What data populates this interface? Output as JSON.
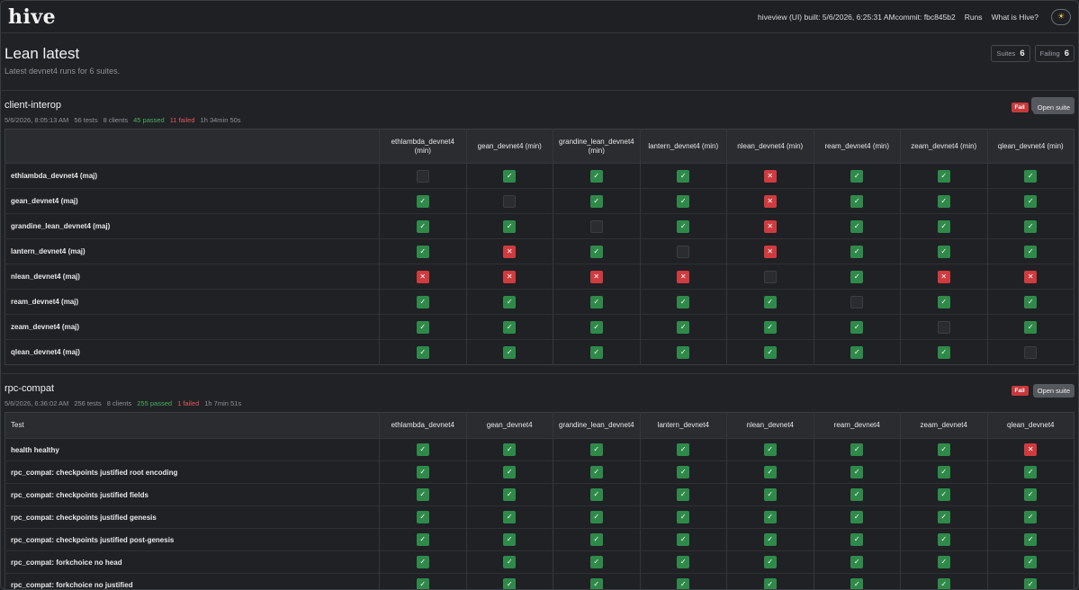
{
  "header": {
    "logo": "hive",
    "build_info": "hiveview (UI) built: 5/6/2026, 6:25:31 AMcommit: fbc845b2",
    "nav": [
      "Runs",
      "What is Hive?"
    ],
    "theme_icon": "sun-icon"
  },
  "page": {
    "title": "Lean latest",
    "subtitle": "Latest devnet4 runs for 6 suites.",
    "stats": [
      {
        "label": "Suites",
        "value": "6"
      },
      {
        "label": "Failing",
        "value": "6"
      }
    ],
    "filter_tag": "devnet4"
  },
  "suites": [
    {
      "id": "client-interop",
      "title": "client-interop",
      "date": "5/6/2026, 8:05:13 AM",
      "tests": "56 tests",
      "clients": "8 clients",
      "passed": "45 passed",
      "failed": "11 failed",
      "duration": "1h 34min 50s",
      "badge": "Fail",
      "open_label": "Open suite",
      "corner_label": "",
      "columns": [
        "ethlambda_devnet4 (min)",
        "gean_devnet4 (min)",
        "grandine_lean_devnet4 (min)",
        "lantern_devnet4 (min)",
        "nlean_devnet4 (min)",
        "ream_devnet4 (min)",
        "zeam_devnet4 (min)",
        "qlean_devnet4 (min)"
      ],
      "rows": [
        {
          "name": "ethlambda_devnet4 (maj)",
          "cells": [
            "n",
            "p",
            "p",
            "p",
            "f",
            "p",
            "p",
            "p"
          ]
        },
        {
          "name": "gean_devnet4 (maj)",
          "cells": [
            "p",
            "n",
            "p",
            "p",
            "f",
            "p",
            "p",
            "p"
          ]
        },
        {
          "name": "grandine_lean_devnet4 (maj)",
          "cells": [
            "p",
            "p",
            "n",
            "p",
            "f",
            "p",
            "p",
            "p"
          ]
        },
        {
          "name": "lantern_devnet4 (maj)",
          "cells": [
            "p",
            "f",
            "p",
            "n",
            "f",
            "p",
            "p",
            "p"
          ]
        },
        {
          "name": "nlean_devnet4 (maj)",
          "cells": [
            "f",
            "f",
            "f",
            "f",
            "n",
            "p",
            "f",
            "f"
          ]
        },
        {
          "name": "ream_devnet4 (maj)",
          "cells": [
            "p",
            "p",
            "p",
            "p",
            "p",
            "n",
            "p",
            "p"
          ]
        },
        {
          "name": "zeam_devnet4 (maj)",
          "cells": [
            "p",
            "p",
            "p",
            "p",
            "p",
            "p",
            "n",
            "p"
          ]
        },
        {
          "name": "qlean_devnet4 (maj)",
          "cells": [
            "p",
            "p",
            "p",
            "p",
            "p",
            "p",
            "p",
            "n"
          ]
        }
      ]
    },
    {
      "id": "rpc-compat",
      "title": "rpc-compat",
      "date": "5/6/2026, 6:36:02 AM",
      "tests": "256 tests",
      "clients": "8 clients",
      "passed": "255 passed",
      "failed": "1 failed",
      "duration": "1h 7min 51s",
      "badge": "Fail",
      "open_label": "Open suite",
      "corner_label": "Test",
      "columns": [
        "ethlambda_devnet4",
        "gean_devnet4",
        "grandine_lean_devnet4",
        "lantern_devnet4",
        "nlean_devnet4",
        "ream_devnet4",
        "zeam_devnet4",
        "qlean_devnet4"
      ],
      "rows": [
        {
          "name": "health healthy",
          "cells": [
            "p",
            "p",
            "p",
            "p",
            "p",
            "p",
            "p",
            "f"
          ]
        },
        {
          "name": "rpc_compat: checkpoints justified root encoding",
          "cells": [
            "p",
            "p",
            "p",
            "p",
            "p",
            "p",
            "p",
            "p"
          ]
        },
        {
          "name": "rpc_compat: checkpoints justified fields",
          "cells": [
            "p",
            "p",
            "p",
            "p",
            "p",
            "p",
            "p",
            "p"
          ]
        },
        {
          "name": "rpc_compat: checkpoints justified genesis",
          "cells": [
            "p",
            "p",
            "p",
            "p",
            "p",
            "p",
            "p",
            "p"
          ]
        },
        {
          "name": "rpc_compat: checkpoints justified post-genesis",
          "cells": [
            "p",
            "p",
            "p",
            "p",
            "p",
            "p",
            "p",
            "p"
          ]
        },
        {
          "name": "rpc_compat: forkchoice no head",
          "cells": [
            "p",
            "p",
            "p",
            "p",
            "p",
            "p",
            "p",
            "p"
          ]
        },
        {
          "name": "rpc_compat: forkchoice no justified",
          "cells": [
            "p",
            "p",
            "p",
            "p",
            "p",
            "p",
            "p",
            "p"
          ]
        }
      ]
    }
  ],
  "colors": {
    "pass": "#2f8a4a",
    "fail": "#cf3b3f",
    "none": "#2a2c30"
  }
}
